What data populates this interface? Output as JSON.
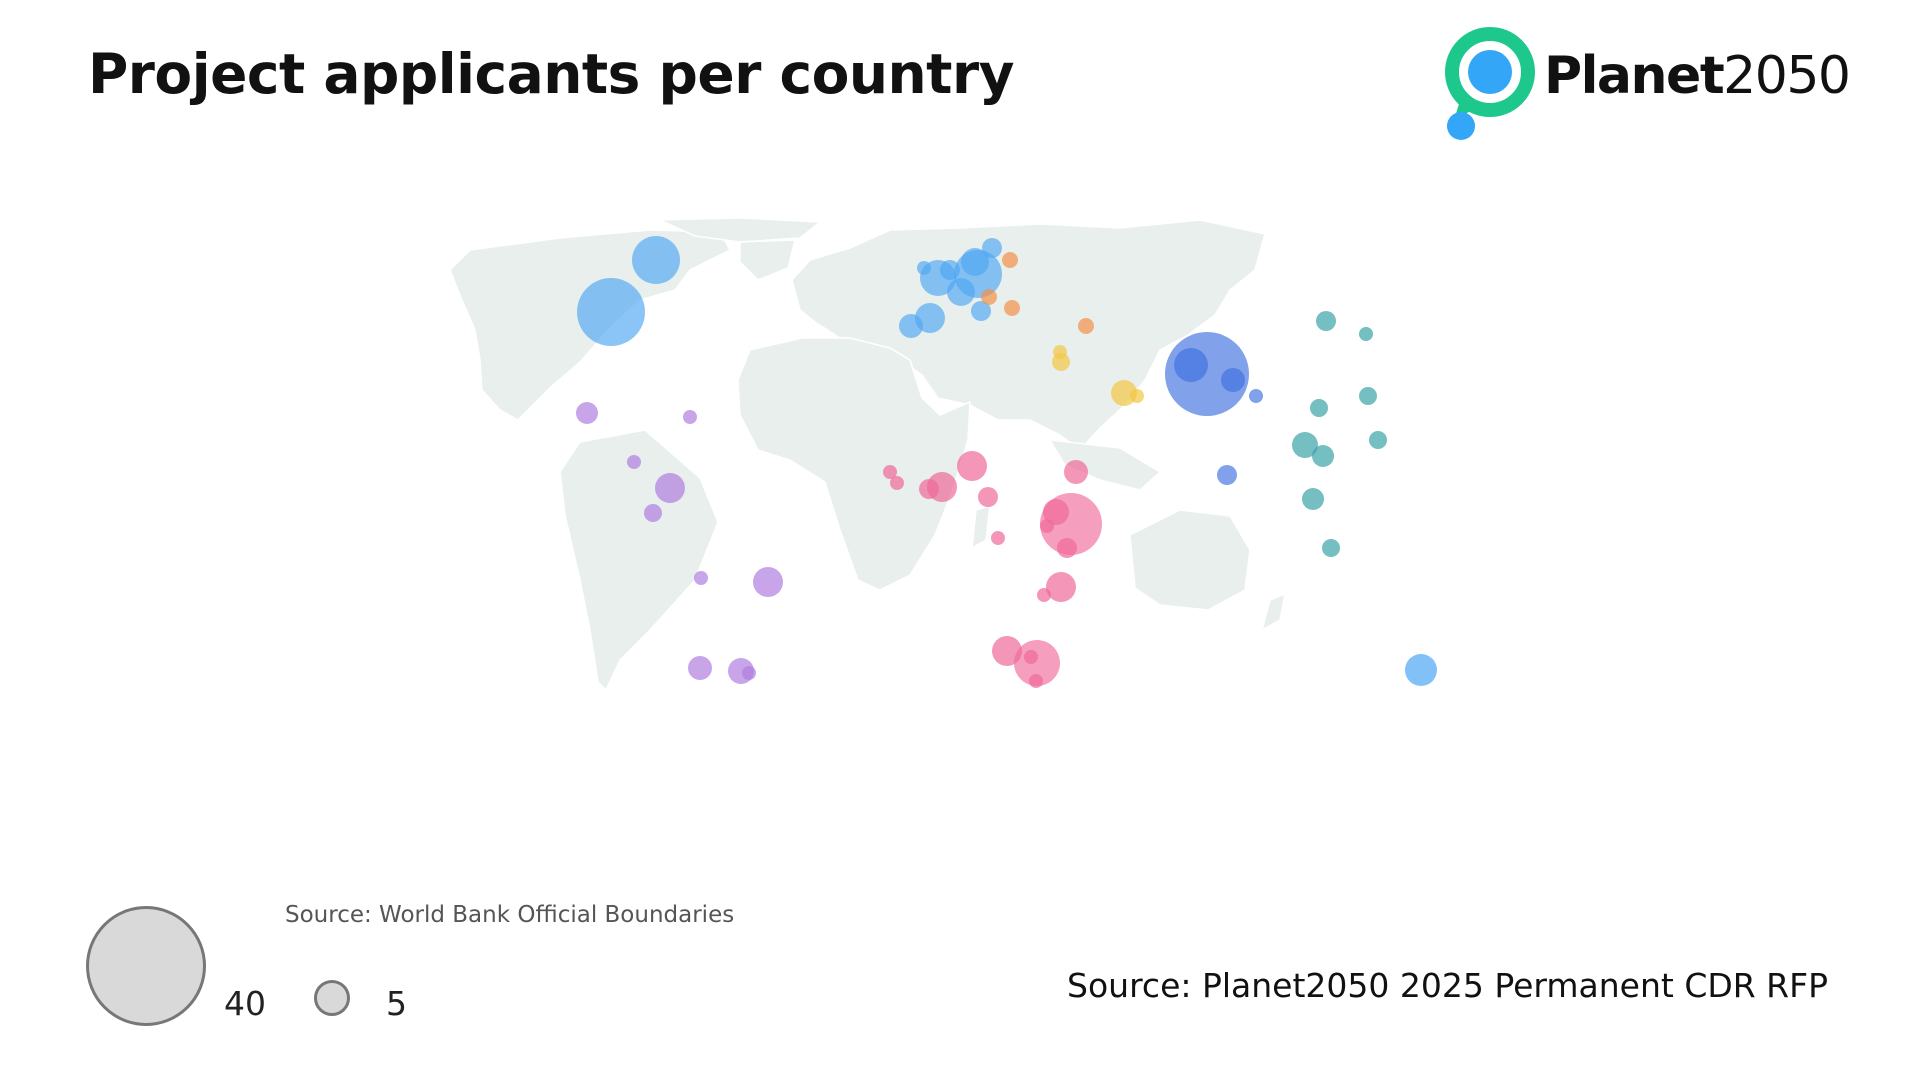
{
  "header": {
    "title": "Project applicants per country"
  },
  "logo": {
    "brand_bold": "Planet",
    "brand_light": "2050"
  },
  "colors": {
    "north_america_europe_australia": "#4da6f5",
    "latin_america": "#b07ee0",
    "africa": "#f06a9a",
    "eastern_europe": "#f3924a",
    "middle_east": "#f2c744",
    "south_asia": "#3d6ee0",
    "east_southeast_asia": "#3aa3a6",
    "land": "#e8efec",
    "logo_green": "#1ec88c",
    "logo_blue": "#33a6f7"
  },
  "map_source": "Source: World Bank Official Boundaries",
  "source": "Source: Planet2050 2025 Permanent CDR RFP",
  "legend": {
    "large_value": "40",
    "small_value": "5"
  }
}
